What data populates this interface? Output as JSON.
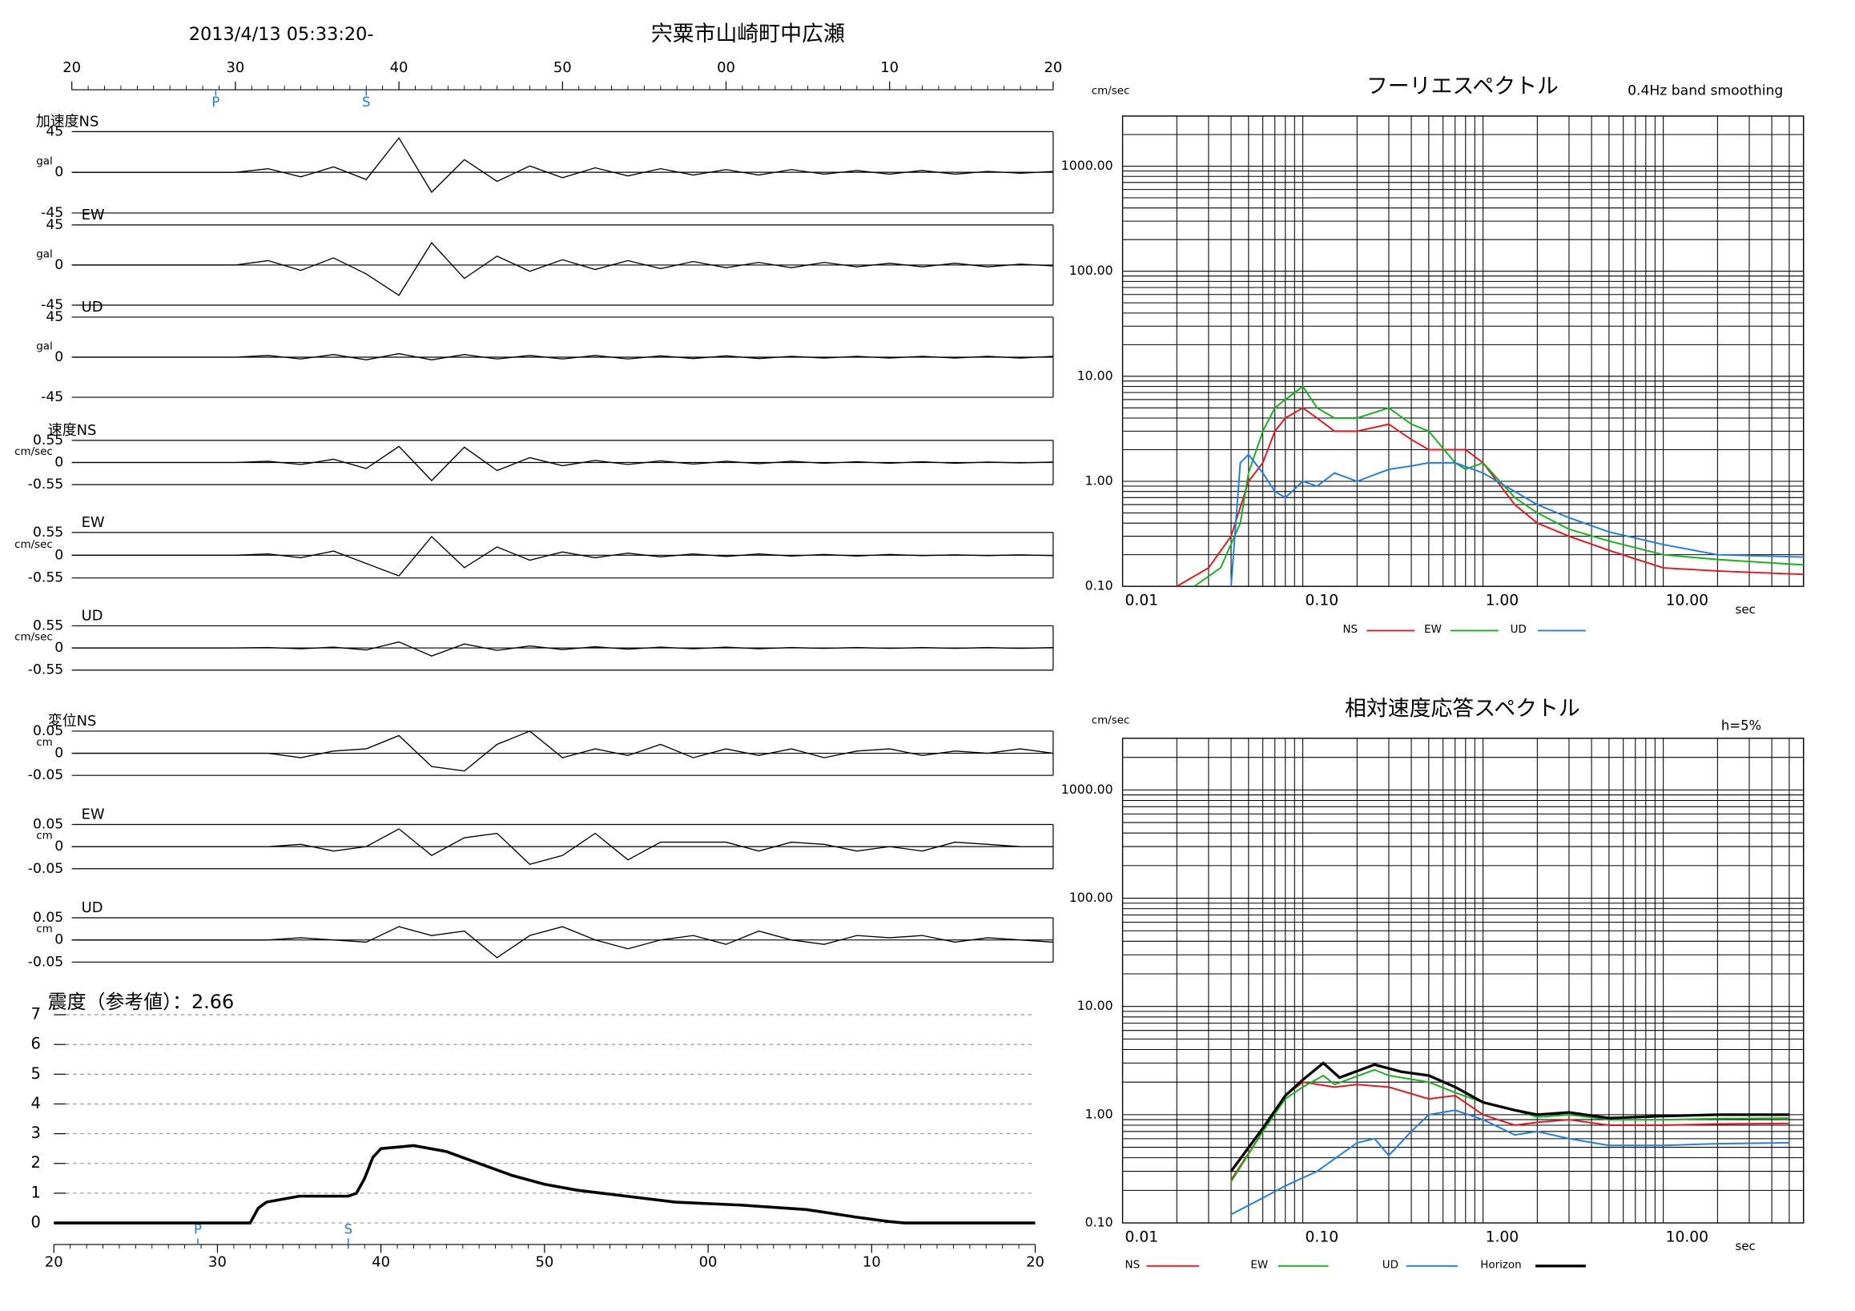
{
  "chart_data": [
    {
      "type": "waveform",
      "title": "2013/4/13 05:33:20-",
      "subtitle": "宍粟市山崎町中広瀬",
      "xlim": [
        20,
        80
      ],
      "xticks": [
        20,
        30,
        40,
        50,
        {
          "value": 60,
          "label": "00"
        },
        {
          "value": 70,
          "label": "10"
        },
        {
          "value": 80,
          "label": "20"
        }
      ],
      "markers": [
        {
          "label": "P",
          "x": 28.8
        },
        {
          "label": "S",
          "x": 38
        }
      ],
      "x": [
        20,
        22,
        24,
        26,
        28,
        30,
        32,
        34,
        36,
        38,
        40,
        42,
        44,
        46,
        48,
        50,
        52,
        54,
        56,
        58,
        60,
        62,
        64,
        66,
        68,
        70,
        72,
        74,
        76,
        78,
        80
      ],
      "panels": [
        {
          "name": "加速度NS",
          "unit": "gal",
          "ylim": [
            -45,
            45
          ],
          "yticks": [
            -45,
            0,
            45
          ],
          "values": [
            0,
            0,
            0,
            0,
            0,
            0,
            4,
            -5,
            6,
            -8,
            38,
            -22,
            14,
            -10,
            7,
            -6,
            5,
            -4,
            4,
            -3,
            3,
            -3,
            3,
            -2,
            2,
            -2,
            2,
            -2,
            1,
            -1,
            1
          ]
        },
        {
          "name": "EW",
          "unit": "gal",
          "ylim": [
            -45,
            45
          ],
          "yticks": [
            -45,
            0,
            45
          ],
          "values": [
            0,
            0,
            0,
            0,
            0,
            0,
            5,
            -6,
            8,
            -10,
            -34,
            25,
            -15,
            10,
            -7,
            6,
            -5,
            5,
            -4,
            4,
            -3,
            3,
            -3,
            3,
            -2,
            2,
            -2,
            2,
            -2,
            1,
            -1
          ]
        },
        {
          "name": "UD",
          "unit": "gal",
          "ylim": [
            -45,
            45
          ],
          "yticks": [
            -45,
            0,
            45
          ],
          "values": [
            0,
            0,
            0,
            0,
            0,
            0,
            2,
            -2,
            3,
            -3,
            4,
            -3,
            3,
            -2,
            2,
            -2,
            2,
            -2,
            1.5,
            -1.5,
            1.5,
            -1.5,
            1,
            -1,
            1,
            -1,
            1,
            -1,
            1,
            -1,
            1
          ]
        },
        {
          "name": "速度NS",
          "unit": "cm/sec",
          "ylim": [
            -0.55,
            0.55
          ],
          "yticks": [
            -0.55,
            0,
            0.55
          ],
          "values": [
            0,
            0,
            0,
            0,
            0,
            0,
            0.03,
            -0.05,
            0.08,
            -0.15,
            0.4,
            -0.45,
            0.38,
            -0.2,
            0.12,
            -0.08,
            0.05,
            -0.05,
            0.04,
            -0.04,
            0.03,
            -0.03,
            0.03,
            -0.02,
            0.02,
            -0.02,
            0.02,
            -0.02,
            0.01,
            -0.01,
            0.01
          ]
        },
        {
          "name": "EW",
          "unit": "cm/sec",
          "ylim": [
            -0.55,
            0.55
          ],
          "yticks": [
            -0.55,
            0,
            0.55
          ],
          "values": [
            0,
            0,
            0,
            0,
            0,
            0,
            0.03,
            -0.06,
            0.1,
            -0.2,
            -0.5,
            0.45,
            -0.3,
            0.2,
            -0.12,
            0.08,
            -0.06,
            0.05,
            -0.04,
            0.03,
            -0.03,
            0.03,
            -0.02,
            0.02,
            -0.02,
            0.02,
            -0.01,
            0.01,
            -0.01,
            0.01,
            -0.01
          ]
        },
        {
          "name": "UD",
          "unit": "cm/sec",
          "ylim": [
            -0.55,
            0.55
          ],
          "yticks": [
            -0.55,
            0,
            0.55
          ],
          "values": [
            0,
            0,
            0,
            0,
            0,
            0,
            0.01,
            -0.02,
            0.02,
            -0.05,
            0.15,
            -0.2,
            0.1,
            -0.06,
            0.05,
            -0.04,
            0.03,
            -0.03,
            0.02,
            -0.02,
            0.02,
            -0.02,
            0.01,
            -0.01,
            0.01,
            -0.01,
            0.01,
            -0.01,
            0.01,
            -0.01,
            0.01
          ]
        },
        {
          "name": "変位NS",
          "unit": "cm",
          "ylim": [
            -0.05,
            0.05
          ],
          "yticks": [
            -0.05,
            0,
            0.05
          ],
          "values": [
            0,
            0,
            0,
            0,
            0,
            0,
            0,
            -0.01,
            0.005,
            0.01,
            0.04,
            -0.03,
            -0.04,
            0.02,
            0.05,
            -0.01,
            0.01,
            -0.005,
            0.02,
            -0.01,
            0.01,
            -0.005,
            0.01,
            -0.01,
            0.005,
            0.01,
            -0.005,
            0.005,
            0,
            0.01,
            0
          ]
        },
        {
          "name": "EW",
          "unit": "cm",
          "ylim": [
            -0.05,
            0.05
          ],
          "yticks": [
            -0.05,
            0,
            0.05
          ],
          "values": [
            0,
            0,
            0,
            0,
            0,
            0,
            0,
            0.005,
            -0.01,
            0,
            0.04,
            -0.02,
            0.02,
            0.03,
            -0.04,
            -0.02,
            0.03,
            -0.03,
            0.01,
            0.01,
            0.01,
            -0.01,
            0.01,
            0.005,
            -0.01,
            0,
            -0.01,
            0.01,
            0.005,
            0,
            0
          ]
        },
        {
          "name": "UD",
          "unit": "cm",
          "ylim": [
            -0.05,
            0.05
          ],
          "yticks": [
            -0.05,
            0,
            0.05
          ],
          "values": [
            0,
            0,
            0,
            0,
            0,
            0,
            0,
            0.005,
            0,
            -0.005,
            0.03,
            0.01,
            0.02,
            -0.04,
            0.01,
            0.03,
            0,
            -0.02,
            0,
            0.01,
            -0.01,
            0.02,
            0,
            -0.01,
            0.01,
            0.005,
            0.01,
            -0.005,
            0.005,
            0,
            -0.005
          ]
        }
      ]
    },
    {
      "type": "line",
      "title": "震度（参考値）：2.66",
      "color": "#000000",
      "xlim": [
        20,
        80
      ],
      "xticks": [
        20,
        30,
        40,
        50,
        {
          "value": 60,
          "label": "00"
        },
        {
          "value": 70,
          "label": "10"
        },
        {
          "value": 80,
          "label": "20"
        }
      ],
      "ylim": [
        0,
        7
      ],
      "yticks": [
        0,
        1,
        2,
        3,
        4,
        5,
        6,
        7
      ],
      "grid": true,
      "markers": [
        {
          "label": "P",
          "x": 28.8
        },
        {
          "label": "S",
          "x": 38
        }
      ],
      "x": [
        20,
        32,
        32.5,
        33,
        35,
        36,
        38,
        38.5,
        39,
        39.5,
        40,
        42,
        44,
        46,
        48,
        50,
        52,
        55,
        58,
        62,
        66,
        69,
        71,
        72,
        80
      ],
      "values": [
        0,
        0,
        0.5,
        0.7,
        0.9,
        0.9,
        0.9,
        1,
        1.5,
        2.2,
        2.5,
        2.6,
        2.4,
        2.0,
        1.6,
        1.3,
        1.1,
        0.9,
        0.7,
        0.6,
        0.45,
        0.2,
        0.05,
        0,
        0
      ]
    },
    {
      "type": "line",
      "title": "フーリエスペクトル",
      "subtitle": "0.4Hz band smoothing",
      "y_label": "cm/sec",
      "x_label": "sec",
      "log_x": true,
      "log_y": true,
      "grid": true,
      "xlim": [
        0.01,
        60
      ],
      "xticks": [
        0.01,
        {
          "value": 0.1,
          "label": "0.10"
        },
        {
          "value": 1,
          "label": "1.00"
        },
        {
          "value": 10,
          "label": "10.00"
        }
      ],
      "ylim": [
        0.1,
        3000
      ],
      "yticks": [
        {
          "value": 0.1,
          "label": "0.10"
        },
        {
          "value": 1,
          "label": "1.00"
        },
        {
          "value": 10,
          "label": "10.00"
        },
        {
          "value": 100,
          "label": "100.00"
        },
        {
          "value": 1000,
          "label": "1000.00"
        }
      ],
      "series": [
        {
          "name": "NS",
          "color": "#e8141c",
          "x": [
            0.02,
            0.03,
            0.04,
            0.05,
            0.06,
            0.07,
            0.08,
            0.1,
            0.12,
            0.15,
            0.2,
            0.3,
            0.4,
            0.5,
            0.7,
            0.8,
            1.0,
            1.5,
            2,
            3,
            5,
            10,
            20,
            60
          ],
          "values": [
            0.1,
            0.15,
            0.3,
            1.0,
            1.5,
            3,
            4,
            5,
            4,
            3,
            3,
            3.5,
            2.5,
            2,
            2,
            2,
            1.5,
            0.6,
            0.4,
            0.3,
            0.22,
            0.15,
            0.14,
            0.13
          ]
        },
        {
          "name": "EW",
          "color": "#10b418",
          "x": [
            0.025,
            0.035,
            0.045,
            0.05,
            0.06,
            0.07,
            0.08,
            0.1,
            0.12,
            0.15,
            0.2,
            0.3,
            0.4,
            0.5,
            0.7,
            0.8,
            1,
            1.5,
            2,
            3,
            5,
            10,
            20,
            60
          ],
          "values": [
            0.1,
            0.15,
            0.4,
            1.2,
            3,
            5,
            6,
            8,
            5,
            4,
            4,
            5,
            3.5,
            3,
            1.5,
            1.3,
            1.5,
            0.7,
            0.5,
            0.35,
            0.27,
            0.2,
            0.18,
            0.16
          ]
        },
        {
          "name": "UD",
          "color": "#1c7ce8",
          "x": [
            0.04,
            0.045,
            0.05,
            0.06,
            0.07,
            0.08,
            0.1,
            0.12,
            0.15,
            0.2,
            0.3,
            0.4,
            0.5,
            0.7,
            1,
            1.5,
            2,
            3,
            5,
            10,
            20,
            60
          ],
          "values": [
            0.1,
            1.5,
            1.8,
            1.2,
            0.8,
            0.7,
            1.0,
            0.9,
            1.2,
            1.0,
            1.3,
            1.4,
            1.5,
            1.5,
            1.2,
            0.8,
            0.6,
            0.45,
            0.33,
            0.25,
            0.2,
            0.19
          ]
        }
      ]
    },
    {
      "type": "line",
      "title": "相対速度応答スペクトル",
      "subtitle": "h=5%",
      "y_label": "cm/sec",
      "x_label": "sec",
      "log_x": true,
      "log_y": true,
      "grid": true,
      "xlim": [
        0.01,
        60
      ],
      "xticks": [
        0.01,
        {
          "value": 0.1,
          "label": "0.10"
        },
        {
          "value": 1,
          "label": "1.00"
        },
        {
          "value": 10,
          "label": "10.00"
        }
      ],
      "ylim": [
        0.1,
        3000
      ],
      "yticks": [
        {
          "value": 0.1,
          "label": "0.10"
        },
        {
          "value": 1,
          "label": "1.00"
        },
        {
          "value": 10,
          "label": "10.00"
        },
        {
          "value": 100,
          "label": "100.00"
        },
        {
          "value": 1000,
          "label": "1000.00"
        }
      ],
      "series": [
        {
          "name": "NS",
          "color": "#e8141c",
          "x": [
            0.04,
            0.06,
            0.08,
            0.1,
            0.15,
            0.2,
            0.3,
            0.5,
            0.7,
            1,
            1.5,
            2,
            3,
            5,
            10,
            20,
            50
          ],
          "values": [
            0.25,
            0.7,
            1.5,
            2,
            1.8,
            1.9,
            1.8,
            1.4,
            1.5,
            1.0,
            0.8,
            0.85,
            0.9,
            0.8,
            0.8,
            0.82,
            0.83
          ]
        },
        {
          "name": "EW",
          "color": "#10b418",
          "x": [
            0.04,
            0.06,
            0.08,
            0.1,
            0.13,
            0.15,
            0.25,
            0.3,
            0.5,
            0.7,
            1,
            1.5,
            2,
            3,
            5,
            10,
            20,
            50
          ],
          "values": [
            0.24,
            0.7,
            1.4,
            1.8,
            2.3,
            1.9,
            2.6,
            2.3,
            2.0,
            1.6,
            1.3,
            1.1,
            0.95,
            1.0,
            0.9,
            0.9,
            0.92,
            0.93
          ]
        },
        {
          "name": "UD",
          "color": "#1c7ce8",
          "x": [
            0.04,
            0.06,
            0.08,
            0.12,
            0.2,
            0.25,
            0.3,
            0.4,
            0.5,
            0.7,
            1,
            1.5,
            2,
            3,
            5,
            10,
            20,
            50
          ],
          "values": [
            0.12,
            0.17,
            0.22,
            0.3,
            0.55,
            0.6,
            0.42,
            0.7,
            1.0,
            1.1,
            0.9,
            0.65,
            0.7,
            0.6,
            0.52,
            0.52,
            0.54,
            0.55
          ]
        },
        {
          "name": "Horizon",
          "color": "#000000",
          "line_width": 2.2,
          "x": [
            0.04,
            0.06,
            0.08,
            0.1,
            0.13,
            0.16,
            0.25,
            0.35,
            0.5,
            0.7,
            1,
            1.5,
            2,
            3,
            5,
            10,
            20,
            50
          ],
          "values": [
            0.3,
            0.75,
            1.5,
            2.1,
            3.0,
            2.2,
            2.9,
            2.5,
            2.3,
            1.8,
            1.3,
            1.1,
            1.0,
            1.05,
            0.93,
            0.97,
            1.0,
            1.0
          ]
        }
      ]
    }
  ]
}
